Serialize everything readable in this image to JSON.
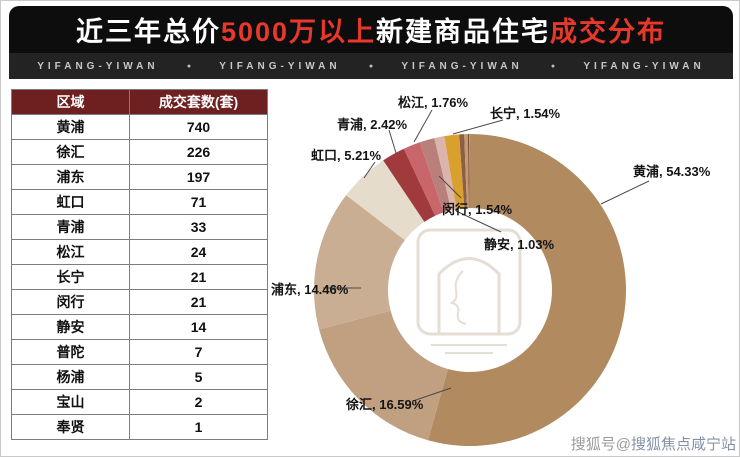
{
  "title": {
    "segments": [
      {
        "text": "近三年总价",
        "color": "#ffffff"
      },
      {
        "text": "5000万以上",
        "color": "#e8382b"
      },
      {
        "text": "新建商品住宅",
        "color": "#ffffff"
      },
      {
        "text": "成交分布",
        "color": "#e8382b"
      }
    ]
  },
  "brand_strip": {
    "items": [
      "YIFANG-YIWAN",
      "YIFANG-YIWAN",
      "YIFANG-YIWAN",
      "YIFANG-YIWAN"
    ],
    "separator": "●"
  },
  "table": {
    "headers": [
      "区域",
      "成交套数(套)"
    ],
    "rows": [
      [
        "黄浦",
        "740"
      ],
      [
        "徐汇",
        "226"
      ],
      [
        "浦东",
        "197"
      ],
      [
        "虹口",
        "71"
      ],
      [
        "青浦",
        "33"
      ],
      [
        "松江",
        "24"
      ],
      [
        "长宁",
        "21"
      ],
      [
        "闵行",
        "21"
      ],
      [
        "静安",
        "14"
      ],
      [
        "普陀",
        "7"
      ],
      [
        "杨浦",
        "5"
      ],
      [
        "宝山",
        "2"
      ],
      [
        "奉贤",
        "1"
      ]
    ],
    "header_bg": "#6e1f1f",
    "header_text_color": "#ffffff"
  },
  "chart_data": {
    "type": "pie",
    "donut": true,
    "title": "",
    "categories": [
      "黄浦",
      "徐汇",
      "浦东",
      "虹口",
      "青浦",
      "松江",
      "闵行",
      "静安",
      "长宁",
      "普陀",
      "杨浦",
      "宝山",
      "奉贤"
    ],
    "values": [
      54.33,
      16.59,
      14.46,
      5.21,
      2.42,
      1.76,
      1.54,
      1.03,
      1.54,
      0.51,
      0.37,
      0.15,
      0.07
    ],
    "labels": [
      "黄浦, 54.33%",
      "徐汇, 16.59%",
      "浦东, 14.46%",
      "虹口, 5.21%",
      "青浦, 2.42%",
      "松江, 1.76%",
      "闵行, 1.54%",
      "静安, 1.03%",
      "长宁, 1.54%",
      "",
      "",
      "",
      ""
    ],
    "colors": [
      "#b18a60",
      "#c0a080",
      "#c9ae93",
      "#e6dccb",
      "#a13a3c",
      "#c9666c",
      "#b97f7b",
      "#dab4ad",
      "#d9a02e",
      "#8a5f46",
      "#c49a6c",
      "#7c4e3c",
      "#caa98a"
    ],
    "unit": "%",
    "legend": "none",
    "start_angle_deg_clockwise_from_top": 0
  },
  "watermark": {
    "bottom_text_prefix": "搜狐号@",
    "bottom_text_main": "搜狐焦点咸宁站"
  }
}
